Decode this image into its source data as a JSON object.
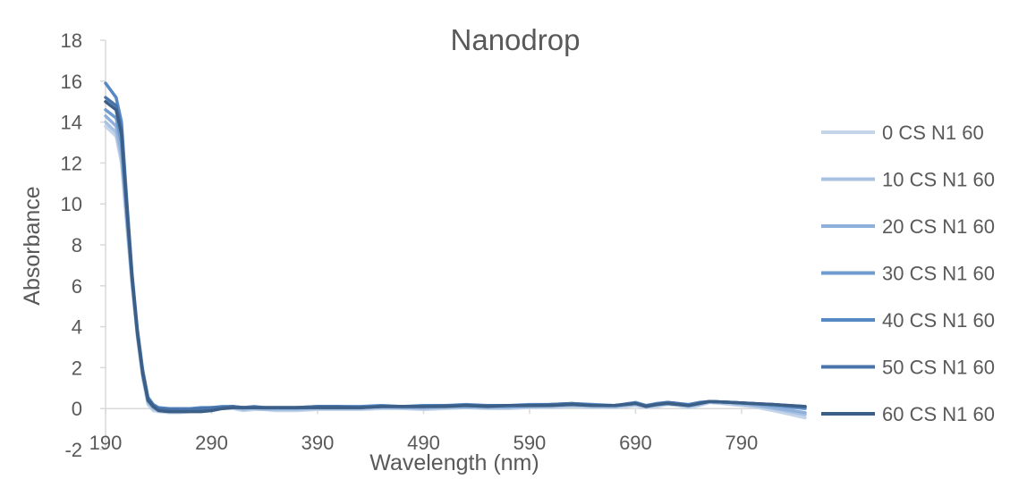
{
  "chart_data": {
    "type": "line",
    "title": "Nanodrop",
    "xlabel": "Wavelength (nm)",
    "ylabel": "Absorbance",
    "xlim": [
      190,
      850
    ],
    "ylim": [
      -2,
      18
    ],
    "x_ticks": [
      190,
      290,
      390,
      490,
      590,
      690,
      790
    ],
    "y_ticks": [
      -2,
      0,
      2,
      4,
      6,
      8,
      10,
      12,
      14,
      16,
      18
    ],
    "grid": false,
    "legend_position": "right",
    "x_common": [
      190,
      200,
      205,
      210,
      215,
      220,
      225,
      230,
      235,
      240,
      250,
      260,
      270,
      280,
      290,
      300,
      310,
      320,
      330,
      340,
      350,
      370,
      390,
      410,
      430,
      450,
      470,
      490,
      510,
      530,
      550,
      570,
      590,
      610,
      630,
      650,
      670,
      690,
      700,
      710,
      720,
      730,
      740,
      750,
      760,
      780,
      800,
      820,
      850
    ],
    "series": [
      {
        "name": "0 CS N1 60",
        "color": "#c5d5e9",
        "y": [
          13.8,
          13.3,
          12.0,
          9.0,
          6.0,
          3.5,
          1.5,
          0.2,
          -0.1,
          -0.15,
          -0.2,
          -0.2,
          -0.15,
          -0.1,
          -0.05,
          0.0,
          0.0,
          -0.1,
          -0.05,
          -0.05,
          -0.1,
          -0.1,
          -0.05,
          -0.05,
          -0.05,
          0.0,
          0.0,
          -0.05,
          0.0,
          0.05,
          0.0,
          0.0,
          0.05,
          0.05,
          0.1,
          0.05,
          0.05,
          0.15,
          0.05,
          0.1,
          0.2,
          0.15,
          0.05,
          0.15,
          0.3,
          0.2,
          0.1,
          -0.1,
          -0.45
        ]
      },
      {
        "name": "10 CS N1 60",
        "color": "#a9c2e2",
        "y": [
          14.0,
          13.5,
          12.2,
          9.1,
          6.1,
          3.6,
          1.6,
          0.3,
          0.0,
          -0.1,
          -0.15,
          -0.15,
          -0.1,
          -0.1,
          -0.05,
          0.0,
          0.05,
          -0.05,
          0.0,
          -0.05,
          -0.05,
          -0.05,
          0.0,
          0.0,
          0.0,
          0.05,
          0.05,
          0.0,
          0.05,
          0.05,
          0.05,
          0.05,
          0.1,
          0.1,
          0.15,
          0.1,
          0.1,
          0.2,
          0.1,
          0.15,
          0.25,
          0.2,
          0.1,
          0.2,
          0.3,
          0.25,
          0.15,
          0.0,
          -0.3
        ]
      },
      {
        "name": "20 CS N1 60",
        "color": "#8fb0da",
        "y": [
          14.3,
          13.8,
          12.5,
          9.3,
          6.2,
          3.7,
          1.7,
          0.35,
          0.05,
          -0.05,
          -0.1,
          -0.1,
          -0.05,
          -0.05,
          0.0,
          0.05,
          0.05,
          0.0,
          0.05,
          0.0,
          0.0,
          0.0,
          0.05,
          0.05,
          0.05,
          0.1,
          0.05,
          0.05,
          0.1,
          0.1,
          0.1,
          0.1,
          0.1,
          0.15,
          0.2,
          0.15,
          0.1,
          0.25,
          0.1,
          0.2,
          0.25,
          0.2,
          0.15,
          0.25,
          0.35,
          0.3,
          0.2,
          0.05,
          -0.2
        ]
      },
      {
        "name": "30 CS N1 60",
        "color": "#6e9bd0",
        "y": [
          14.6,
          14.2,
          13.0,
          9.6,
          6.3,
          3.8,
          1.8,
          0.45,
          0.1,
          0.0,
          -0.05,
          -0.05,
          0.0,
          0.0,
          0.0,
          0.05,
          0.1,
          0.05,
          0.05,
          0.05,
          0.05,
          0.05,
          0.05,
          0.05,
          0.05,
          0.1,
          0.1,
          0.1,
          0.15,
          0.15,
          0.1,
          0.1,
          0.15,
          0.2,
          0.2,
          0.15,
          0.15,
          0.25,
          0.15,
          0.2,
          0.3,
          0.25,
          0.15,
          0.25,
          0.35,
          0.3,
          0.25,
          0.15,
          0.0
        ]
      },
      {
        "name": "40 CS N1 60",
        "color": "#5689c3",
        "y": [
          15.9,
          15.2,
          14.0,
          10.2,
          6.6,
          3.9,
          1.9,
          0.55,
          0.2,
          0.05,
          0.0,
          0.0,
          0.0,
          0.05,
          0.05,
          0.1,
          0.1,
          0.05,
          0.1,
          0.05,
          0.05,
          0.05,
          0.1,
          0.1,
          0.1,
          0.15,
          0.1,
          0.15,
          0.15,
          0.2,
          0.15,
          0.15,
          0.2,
          0.2,
          0.25,
          0.2,
          0.15,
          0.3,
          0.15,
          0.25,
          0.3,
          0.25,
          0.2,
          0.3,
          0.35,
          0.3,
          0.25,
          0.2,
          0.05
        ]
      },
      {
        "name": "50 CS N1 60",
        "color": "#4874ab",
        "y": [
          15.2,
          14.8,
          13.6,
          10.0,
          6.5,
          3.8,
          1.8,
          0.5,
          0.15,
          0.0,
          -0.05,
          -0.05,
          -0.05,
          0.0,
          0.05,
          0.05,
          0.1,
          0.05,
          0.05,
          0.05,
          0.05,
          0.05,
          0.1,
          0.1,
          0.05,
          0.1,
          0.1,
          0.1,
          0.15,
          0.15,
          0.15,
          0.15,
          0.15,
          0.2,
          0.25,
          0.15,
          0.15,
          0.25,
          0.15,
          0.2,
          0.3,
          0.25,
          0.15,
          0.25,
          0.35,
          0.3,
          0.25,
          0.2,
          0.1
        ]
      },
      {
        "name": "60 CS N1 60",
        "color": "#3c5f87",
        "y": [
          15.0,
          14.6,
          13.4,
          9.8,
          6.4,
          3.7,
          1.7,
          0.4,
          0.1,
          -0.1,
          -0.15,
          -0.15,
          -0.15,
          -0.15,
          -0.1,
          0.0,
          0.05,
          0.05,
          0.05,
          0.05,
          0.05,
          0.05,
          0.05,
          0.05,
          0.05,
          0.1,
          0.1,
          0.1,
          0.1,
          0.15,
          0.1,
          0.15,
          0.15,
          0.15,
          0.2,
          0.15,
          0.15,
          0.25,
          0.1,
          0.2,
          0.25,
          0.2,
          0.15,
          0.25,
          0.35,
          0.3,
          0.25,
          0.2,
          0.1
        ]
      }
    ]
  }
}
